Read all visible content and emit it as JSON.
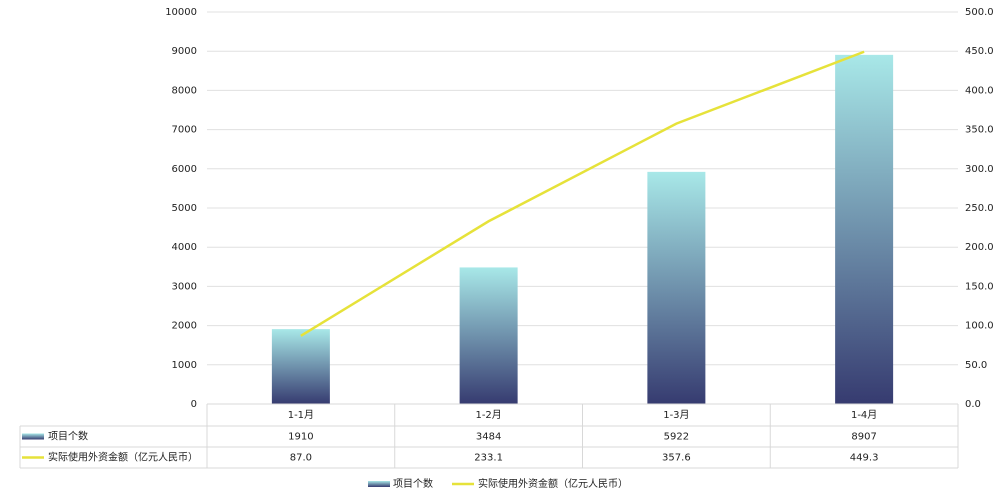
{
  "chart_data": {
    "type": "bar_line",
    "categories": [
      "1-1月",
      "1-2月",
      "1-3月",
      "1-4月"
    ],
    "series": [
      {
        "name": "项目个数",
        "type": "bar",
        "gradient": [
          "#a8e8e8",
          "#363b70"
        ],
        "values": [
          1910,
          3484,
          5922,
          8907
        ]
      },
      {
        "name": "实际使用外资金额（亿元人民币）",
        "type": "line",
        "axis": "y2",
        "color": "#e6e23a",
        "values": [
          87.0,
          233.1,
          357.6,
          449.3
        ],
        "value_labels": [
          "87.0",
          "233.1",
          "357.6",
          "449.3"
        ]
      }
    ],
    "ylim": [
      0,
      10000
    ],
    "yticks": [
      0,
      1000,
      2000,
      3000,
      4000,
      5000,
      6000,
      7000,
      8000,
      9000,
      10000
    ],
    "y2lim": [
      0,
      500
    ],
    "y2ticks": [
      {
        "value": 0,
        "label": "0.0"
      },
      {
        "value": 50,
        "label": "50.0"
      },
      {
        "value": 100,
        "label": "100.0"
      },
      {
        "value": 150,
        "label": "150.0"
      },
      {
        "value": 200,
        "label": "200.0"
      },
      {
        "value": 250,
        "label": "250.0"
      },
      {
        "value": 300,
        "label": "300.0"
      },
      {
        "value": 350,
        "label": "350.0"
      },
      {
        "value": 400,
        "label": "400.0"
      },
      {
        "value": 450,
        "label": "450.0"
      },
      {
        "value": 500,
        "label": "500.0"
      }
    ],
    "grid": true,
    "legend": "bottom",
    "data_table": true
  }
}
